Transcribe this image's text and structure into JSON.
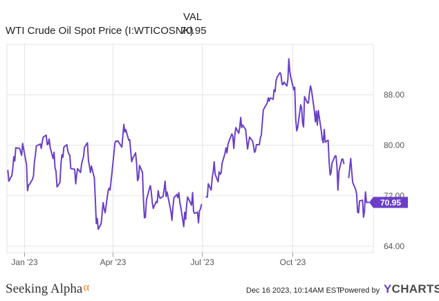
{
  "legend": {
    "column_header": "VAL",
    "series_name": "WTI Crude Oil Spot Price (I:WTICOSNK)",
    "series_value": "70.95"
  },
  "footer": {
    "brand": "Seeking Alpha",
    "brand_mark": "α",
    "timestamp": "Dec 16 2023, 10:14AM EST.",
    "powered_by": "Powered by",
    "ycharts_y": "Y",
    "ycharts_rest": "CHARTS"
  },
  "colors": {
    "line": "#6a3fc8",
    "grid": "#e3e3e3",
    "label_bg": "#6a3fc8"
  },
  "chart_data": {
    "type": "line",
    "title": "",
    "xlabel": "",
    "ylabel": "",
    "ylim": [
      63,
      96
    ],
    "xlim": [
      "2022-12-14",
      "2023-12-22"
    ],
    "x_ticks": [
      {
        "date": "2023-01-01",
        "label": "Jan '23"
      },
      {
        "date": "2023-04-01",
        "label": "Apr '23"
      },
      {
        "date": "2023-07-01",
        "label": "Jul '23"
      },
      {
        "date": "2023-10-01",
        "label": "Oct '23"
      }
    ],
    "y_ticks": [
      64.0,
      72.0,
      80.0,
      88.0
    ],
    "y_tick_labels": [
      "64.00",
      "72.00",
      "80.00",
      "88.00"
    ],
    "last_value_label": "70.95",
    "series": [
      {
        "name": "WTI Crude Oil Spot Price (I:WTICOSNK)",
        "points": [
          [
            "2022-12-15",
            76.0
          ],
          [
            "2022-12-16",
            74.3
          ],
          [
            "2022-12-19",
            75.2
          ],
          [
            "2022-12-20",
            76.3
          ],
          [
            "2022-12-21",
            78.2
          ],
          [
            "2022-12-22",
            77.5
          ],
          [
            "2022-12-23",
            79.6
          ],
          [
            "2022-12-27",
            79.5
          ],
          [
            "2022-12-28",
            78.9
          ],
          [
            "2022-12-29",
            78.4
          ],
          [
            "2022-12-30",
            80.3
          ],
          [
            "2023-01-03",
            76.9
          ],
          [
            "2023-01-04",
            72.8
          ],
          [
            "2023-01-05",
            73.7
          ],
          [
            "2023-01-06",
            73.8
          ],
          [
            "2023-01-09",
            74.6
          ],
          [
            "2023-01-10",
            75.1
          ],
          [
            "2023-01-11",
            77.4
          ],
          [
            "2023-01-12",
            78.4
          ],
          [
            "2023-01-13",
            79.9
          ],
          [
            "2023-01-17",
            80.2
          ],
          [
            "2023-01-18",
            79.5
          ],
          [
            "2023-01-19",
            80.6
          ],
          [
            "2023-01-20",
            81.3
          ],
          [
            "2023-01-23",
            81.6
          ],
          [
            "2023-01-24",
            80.1
          ],
          [
            "2023-01-25",
            80.2
          ],
          [
            "2023-01-26",
            81.0
          ],
          [
            "2023-01-27",
            79.7
          ],
          [
            "2023-01-30",
            77.9
          ],
          [
            "2023-01-31",
            78.9
          ],
          [
            "2023-02-01",
            76.4
          ],
          [
            "2023-02-02",
            75.9
          ],
          [
            "2023-02-03",
            73.4
          ],
          [
            "2023-02-06",
            74.1
          ],
          [
            "2023-02-07",
            77.1
          ],
          [
            "2023-02-08",
            78.5
          ],
          [
            "2023-02-09",
            78.1
          ],
          [
            "2023-02-10",
            79.7
          ],
          [
            "2023-02-13",
            80.1
          ],
          [
            "2023-02-14",
            79.1
          ],
          [
            "2023-02-15",
            78.6
          ],
          [
            "2023-02-16",
            78.5
          ],
          [
            "2023-02-17",
            76.3
          ],
          [
            "2023-02-21",
            76.2
          ],
          [
            "2023-02-22",
            73.9
          ],
          [
            "2023-02-23",
            75.4
          ],
          [
            "2023-02-24",
            76.3
          ],
          [
            "2023-02-27",
            75.7
          ],
          [
            "2023-02-28",
            77.0
          ],
          [
            "2023-03-01",
            77.6
          ],
          [
            "2023-03-02",
            78.2
          ],
          [
            "2023-03-03",
            79.7
          ],
          [
            "2023-03-06",
            80.4
          ],
          [
            "2023-03-07",
            77.6
          ],
          [
            "2023-03-08",
            76.7
          ],
          [
            "2023-03-09",
            75.7
          ],
          [
            "2023-03-10",
            76.7
          ],
          [
            "2023-03-13",
            74.8
          ],
          [
            "2023-03-14",
            71.3
          ],
          [
            "2023-03-15",
            67.6
          ],
          [
            "2023-03-16",
            68.4
          ],
          [
            "2023-03-17",
            66.7
          ],
          [
            "2023-03-20",
            67.6
          ],
          [
            "2023-03-21",
            69.3
          ],
          [
            "2023-03-22",
            70.9
          ],
          [
            "2023-03-23",
            69.9
          ],
          [
            "2023-03-24",
            69.3
          ],
          [
            "2023-03-27",
            72.8
          ],
          [
            "2023-03-28",
            73.2
          ],
          [
            "2023-03-29",
            72.9
          ],
          [
            "2023-03-30",
            74.3
          ],
          [
            "2023-03-31",
            75.7
          ],
          [
            "2023-04-03",
            80.4
          ],
          [
            "2023-04-04",
            80.7
          ],
          [
            "2023-04-05",
            80.6
          ],
          [
            "2023-04-06",
            80.7
          ],
          [
            "2023-04-10",
            79.7
          ],
          [
            "2023-04-11",
            81.5
          ],
          [
            "2023-04-12",
            83.3
          ],
          [
            "2023-04-13",
            82.1
          ],
          [
            "2023-04-14",
            82.5
          ],
          [
            "2023-04-17",
            80.8
          ],
          [
            "2023-04-18",
            80.9
          ],
          [
            "2023-04-19",
            79.2
          ],
          [
            "2023-04-20",
            77.4
          ],
          [
            "2023-04-21",
            77.9
          ],
          [
            "2023-04-24",
            78.8
          ],
          [
            "2023-04-25",
            77.1
          ],
          [
            "2023-04-26",
            74.4
          ],
          [
            "2023-04-27",
            74.8
          ],
          [
            "2023-04-28",
            76.8
          ],
          [
            "2023-05-01",
            75.7
          ],
          [
            "2023-05-02",
            71.4
          ],
          [
            "2023-05-03",
            68.5
          ],
          [
            "2023-05-04",
            68.6
          ],
          [
            "2023-05-05",
            71.3
          ],
          [
            "2023-05-08",
            73.1
          ],
          [
            "2023-05-09",
            73.6
          ],
          [
            "2023-05-10",
            72.5
          ],
          [
            "2023-05-11",
            70.9
          ],
          [
            "2023-05-12",
            70.0
          ],
          [
            "2023-05-15",
            71.1
          ],
          [
            "2023-05-16",
            70.9
          ],
          [
            "2023-05-17",
            72.8
          ],
          [
            "2023-05-18",
            71.9
          ],
          [
            "2023-05-19",
            71.6
          ],
          [
            "2023-05-22",
            71.9
          ],
          [
            "2023-05-23",
            72.9
          ],
          [
            "2023-05-24",
            74.3
          ],
          [
            "2023-05-25",
            71.9
          ],
          [
            "2023-05-26",
            72.6
          ],
          [
            "2023-05-30",
            69.5
          ],
          [
            "2023-05-31",
            68.1
          ],
          [
            "2023-06-01",
            70.1
          ],
          [
            "2023-06-02",
            71.7
          ],
          [
            "2023-06-05",
            72.2
          ],
          [
            "2023-06-06",
            71.7
          ],
          [
            "2023-06-07",
            72.5
          ],
          [
            "2023-06-08",
            70.9
          ],
          [
            "2023-06-09",
            70.2
          ],
          [
            "2023-06-12",
            67.1
          ],
          [
            "2023-06-13",
            69.4
          ],
          [
            "2023-06-14",
            68.3
          ],
          [
            "2023-06-15",
            70.6
          ],
          [
            "2023-06-16",
            71.8
          ],
          [
            "2023-06-20",
            70.5
          ],
          [
            "2023-06-21",
            72.5
          ],
          [
            "2023-06-22",
            69.5
          ],
          [
            "2023-06-23",
            69.2
          ],
          [
            "2023-06-26",
            69.4
          ],
          [
            "2023-06-27",
            67.7
          ],
          [
            "2023-06-28",
            69.6
          ],
          [
            "2023-06-29",
            69.9
          ],
          [
            "2023-06-30",
            70.6
          ],
          [
            "2023-07-05",
            71.8
          ],
          [
            "2023-07-06",
            71.8
          ],
          [
            "2023-07-07",
            73.9
          ],
          [
            "2023-07-10",
            72.9
          ],
          [
            "2023-07-11",
            74.9
          ],
          [
            "2023-07-12",
            75.8
          ],
          [
            "2023-07-13",
            77.4
          ],
          [
            "2023-07-14",
            75.4
          ],
          [
            "2023-07-17",
            74.2
          ],
          [
            "2023-07-18",
            75.8
          ],
          [
            "2023-07-19",
            75.4
          ],
          [
            "2023-07-20",
            75.6
          ],
          [
            "2023-07-21",
            77.1
          ],
          [
            "2023-07-24",
            78.7
          ],
          [
            "2023-07-25",
            79.6
          ],
          [
            "2023-07-26",
            78.8
          ],
          [
            "2023-07-27",
            80.1
          ],
          [
            "2023-07-28",
            80.6
          ],
          [
            "2023-07-31",
            81.8
          ],
          [
            "2023-08-01",
            81.4
          ],
          [
            "2023-08-02",
            79.5
          ],
          [
            "2023-08-03",
            81.6
          ],
          [
            "2023-08-04",
            82.8
          ],
          [
            "2023-08-07",
            81.9
          ],
          [
            "2023-08-08",
            82.9
          ],
          [
            "2023-08-09",
            84.4
          ],
          [
            "2023-08-10",
            82.8
          ],
          [
            "2023-08-11",
            83.2
          ],
          [
            "2023-08-14",
            82.5
          ],
          [
            "2023-08-15",
            80.9
          ],
          [
            "2023-08-16",
            79.4
          ],
          [
            "2023-08-17",
            80.4
          ],
          [
            "2023-08-18",
            81.3
          ],
          [
            "2023-08-21",
            80.7
          ],
          [
            "2023-08-22",
            80.0
          ],
          [
            "2023-08-23",
            78.9
          ],
          [
            "2023-08-24",
            79.1
          ],
          [
            "2023-08-25",
            80.1
          ],
          [
            "2023-08-28",
            80.1
          ],
          [
            "2023-08-29",
            81.2
          ],
          [
            "2023-08-30",
            81.6
          ],
          [
            "2023-08-31",
            83.6
          ],
          [
            "2023-09-01",
            85.6
          ],
          [
            "2023-09-05",
            86.7
          ],
          [
            "2023-09-06",
            87.5
          ],
          [
            "2023-09-07",
            87.0
          ],
          [
            "2023-09-08",
            87.5
          ],
          [
            "2023-09-11",
            87.3
          ],
          [
            "2023-09-12",
            88.8
          ],
          [
            "2023-09-13",
            88.5
          ],
          [
            "2023-09-14",
            90.2
          ],
          [
            "2023-09-15",
            90.8
          ],
          [
            "2023-09-18",
            91.5
          ],
          [
            "2023-09-19",
            91.2
          ],
          [
            "2023-09-20",
            89.7
          ],
          [
            "2023-09-21",
            89.6
          ],
          [
            "2023-09-22",
            90.0
          ],
          [
            "2023-09-25",
            89.4
          ],
          [
            "2023-09-26",
            90.4
          ],
          [
            "2023-09-27",
            93.7
          ],
          [
            "2023-09-28",
            91.7
          ],
          [
            "2023-09-29",
            90.8
          ],
          [
            "2023-10-02",
            88.8
          ],
          [
            "2023-10-03",
            89.2
          ],
          [
            "2023-10-04",
            84.2
          ],
          [
            "2023-10-05",
            82.3
          ],
          [
            "2023-10-06",
            82.8
          ],
          [
            "2023-10-09",
            86.4
          ],
          [
            "2023-10-10",
            85.9
          ],
          [
            "2023-10-11",
            83.5
          ],
          [
            "2023-10-12",
            82.9
          ],
          [
            "2023-10-13",
            87.7
          ],
          [
            "2023-10-16",
            86.7
          ],
          [
            "2023-10-17",
            86.7
          ],
          [
            "2023-10-18",
            88.3
          ],
          [
            "2023-10-19",
            89.4
          ],
          [
            "2023-10-20",
            88.8
          ],
          [
            "2023-10-23",
            85.5
          ],
          [
            "2023-10-24",
            83.7
          ],
          [
            "2023-10-25",
            85.4
          ],
          [
            "2023-10-26",
            83.2
          ],
          [
            "2023-10-27",
            85.5
          ],
          [
            "2023-10-30",
            82.3
          ],
          [
            "2023-10-31",
            81.0
          ],
          [
            "2023-11-01",
            80.4
          ],
          [
            "2023-11-02",
            82.5
          ],
          [
            "2023-11-03",
            80.5
          ],
          [
            "2023-11-06",
            80.8
          ],
          [
            "2023-11-07",
            77.4
          ],
          [
            "2023-11-08",
            75.3
          ],
          [
            "2023-11-09",
            75.7
          ],
          [
            "2023-11-10",
            77.2
          ],
          [
            "2023-11-13",
            78.3
          ],
          [
            "2023-11-14",
            78.3
          ],
          [
            "2023-11-15",
            76.6
          ],
          [
            "2023-11-16",
            72.9
          ],
          [
            "2023-11-17",
            75.9
          ],
          [
            "2023-11-20",
            77.8
          ],
          [
            "2023-11-21",
            77.8
          ],
          [
            "2023-11-22",
            77.1
          ],
          [
            "2023-11-27",
            74.9
          ],
          [
            "2023-11-28",
            76.4
          ],
          [
            "2023-11-29",
            77.9
          ],
          [
            "2023-11-30",
            75.9
          ],
          [
            "2023-12-01",
            74.1
          ],
          [
            "2023-12-04",
            73.0
          ],
          [
            "2023-12-05",
            72.3
          ],
          [
            "2023-12-06",
            69.4
          ],
          [
            "2023-12-07",
            69.3
          ],
          [
            "2023-12-08",
            71.2
          ],
          [
            "2023-12-11",
            71.3
          ],
          [
            "2023-12-12",
            68.6
          ],
          [
            "2023-12-13",
            69.5
          ],
          [
            "2023-12-14",
            72.6
          ],
          [
            "2023-12-15",
            70.95
          ]
        ]
      }
    ]
  }
}
